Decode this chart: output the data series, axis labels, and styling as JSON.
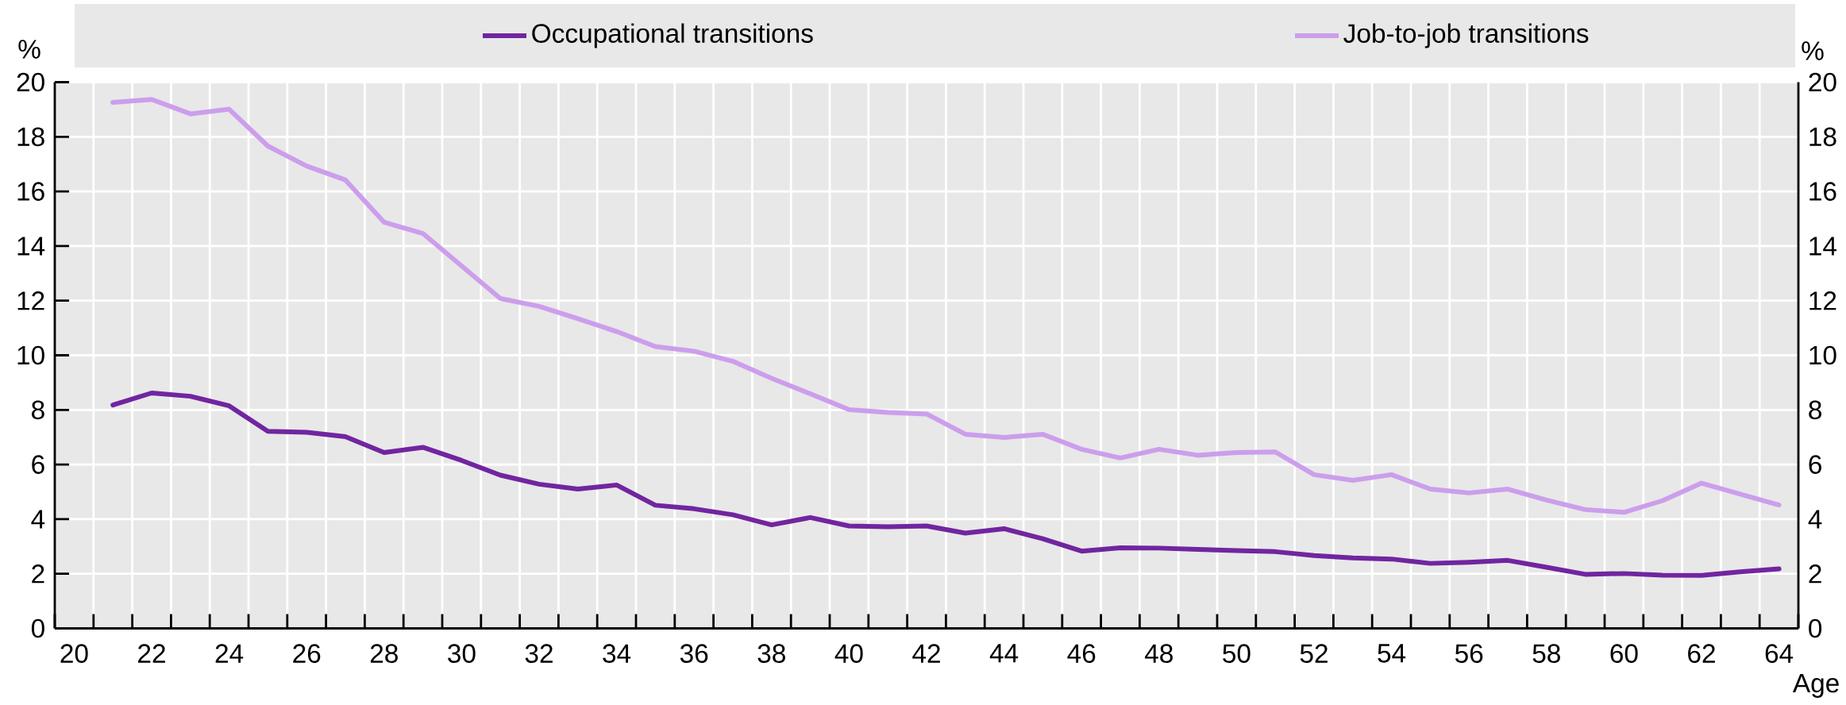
{
  "chart_data": {
    "type": "line",
    "xlabel": "Age",
    "ylabel": "%",
    "y2label": "%",
    "x": [
      21,
      22,
      23,
      24,
      25,
      26,
      27,
      28,
      29,
      30,
      31,
      32,
      33,
      34,
      35,
      36,
      37,
      38,
      39,
      40,
      41,
      42,
      43,
      44,
      45,
      46,
      47,
      48,
      49,
      50,
      51,
      52,
      53,
      54,
      55,
      56,
      57,
      58,
      59,
      60,
      61,
      62,
      63,
      64
    ],
    "xlim": [
      19.5,
      64.5
    ],
    "xticks": [
      20,
      22,
      24,
      26,
      28,
      30,
      32,
      34,
      36,
      38,
      40,
      42,
      44,
      46,
      48,
      50,
      52,
      54,
      56,
      58,
      60,
      62,
      64
    ],
    "ylim": [
      0,
      20
    ],
    "yticks": [
      0,
      2,
      4,
      6,
      8,
      10,
      12,
      14,
      16,
      18,
      20
    ],
    "y2lim": [
      0,
      20
    ],
    "y2ticks": [
      0,
      2,
      4,
      6,
      8,
      10,
      12,
      14,
      16,
      18,
      20
    ],
    "grid": true,
    "legend": "top",
    "series": [
      {
        "name": "Occupational transitions",
        "color": "#7125a0",
        "values": [
          8.18,
          8.62,
          8.5,
          8.15,
          7.22,
          7.18,
          7.02,
          6.44,
          6.63,
          6.15,
          5.61,
          5.28,
          5.1,
          5.25,
          4.51,
          4.38,
          4.16,
          3.79,
          4.06,
          3.75,
          3.72,
          3.75,
          3.49,
          3.65,
          3.28,
          2.83,
          2.95,
          2.94,
          2.89,
          2.85,
          2.81,
          2.67,
          2.58,
          2.54,
          2.38,
          2.42,
          2.49,
          2.24,
          1.98,
          2.01,
          1.95,
          1.94,
          2.07,
          2.18
        ]
      },
      {
        "name": "Job-to-job transitions",
        "color": "#cc9eec",
        "values": [
          19.26,
          19.37,
          18.84,
          19.01,
          17.66,
          16.93,
          16.42,
          14.87,
          14.46,
          13.27,
          12.08,
          11.79,
          11.34,
          10.87,
          10.32,
          10.15,
          9.78,
          9.16,
          8.59,
          8.01,
          7.91,
          7.85,
          7.11,
          6.99,
          7.11,
          6.56,
          6.24,
          6.56,
          6.34,
          6.44,
          6.46,
          5.63,
          5.42,
          5.63,
          5.1,
          4.96,
          5.1,
          4.7,
          4.35,
          4.25,
          4.68,
          5.32,
          4.92,
          4.52
        ]
      }
    ]
  }
}
